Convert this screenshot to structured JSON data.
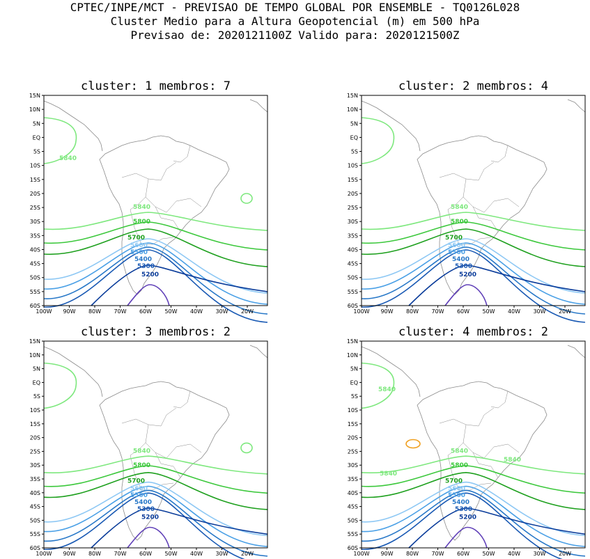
{
  "header": {
    "line1": "CPTEC/INPE/MCT - PREVISAO DE TEMPO GLOBAL POR ENSEMBLE - TQ0126L028",
    "line2": "Cluster Medio para a Altura Geopotencial (m) em 500 hPa",
    "line3": "Previsao de: 2020121100Z   Valido para: 2020121500Z"
  },
  "axes": {
    "lat_labels": [
      "15N",
      "10N",
      "5N",
      "EQ",
      "5S",
      "10S",
      "15S",
      "20S",
      "25S",
      "30S",
      "35S",
      "40S",
      "45S",
      "50S",
      "55S",
      "60S"
    ],
    "lon_labels": [
      "100W",
      "90W",
      "80W",
      "70W",
      "60W",
      "50W",
      "40W",
      "30W",
      "20W"
    ]
  },
  "colors": {
    "c5840": "#7ee87e",
    "c5800": "#3cc83c",
    "c5700": "#1ea01e",
    "c5600": "#8ec8f4",
    "c5500": "#4aa0e6",
    "c5400": "#2878c8",
    "c5300": "#1a5ab4",
    "c5200": "#0a3c9a",
    "c5100": "#6040b8",
    "c5880": "#f0a020",
    "map": "#8a8a8a"
  },
  "panels": [
    {
      "title": "cluster: 1   membros: 7",
      "labels": {
        "l5840a": "5840",
        "l5840b": "5840",
        "l5800": "5800",
        "l5700": "5700",
        "l5600": "5600",
        "l5500": "5500",
        "l5400": "5400",
        "l5300": "5300",
        "l5200": "5200"
      }
    },
    {
      "title": "cluster: 2   membros: 4",
      "labels": {
        "l5840b": "5840",
        "l5800": "5800",
        "l5700": "5700",
        "l5600": "5600",
        "l5500": "5500",
        "l5400": "5400",
        "l5300": "5300",
        "l5200": "5200"
      }
    },
    {
      "title": "cluster: 3   membros: 2",
      "labels": {
        "l5840b": "5840",
        "l5800": "5800",
        "l5700": "5700",
        "l5600": "5600",
        "l5500": "5500",
        "l5400": "5400",
        "l5300": "5300",
        "l5200": "5200"
      }
    },
    {
      "title": "cluster: 4   membros: 2",
      "labels": {
        "l5840a": "5840",
        "l5840b": "5840",
        "l5840c": "5840",
        "l5840d": "5840",
        "l5800": "5800",
        "l5700": "5700",
        "l5600": "5600",
        "l5500": "5500",
        "l5400": "5400",
        "l5300": "5300",
        "l5200": "5200"
      }
    }
  ]
}
